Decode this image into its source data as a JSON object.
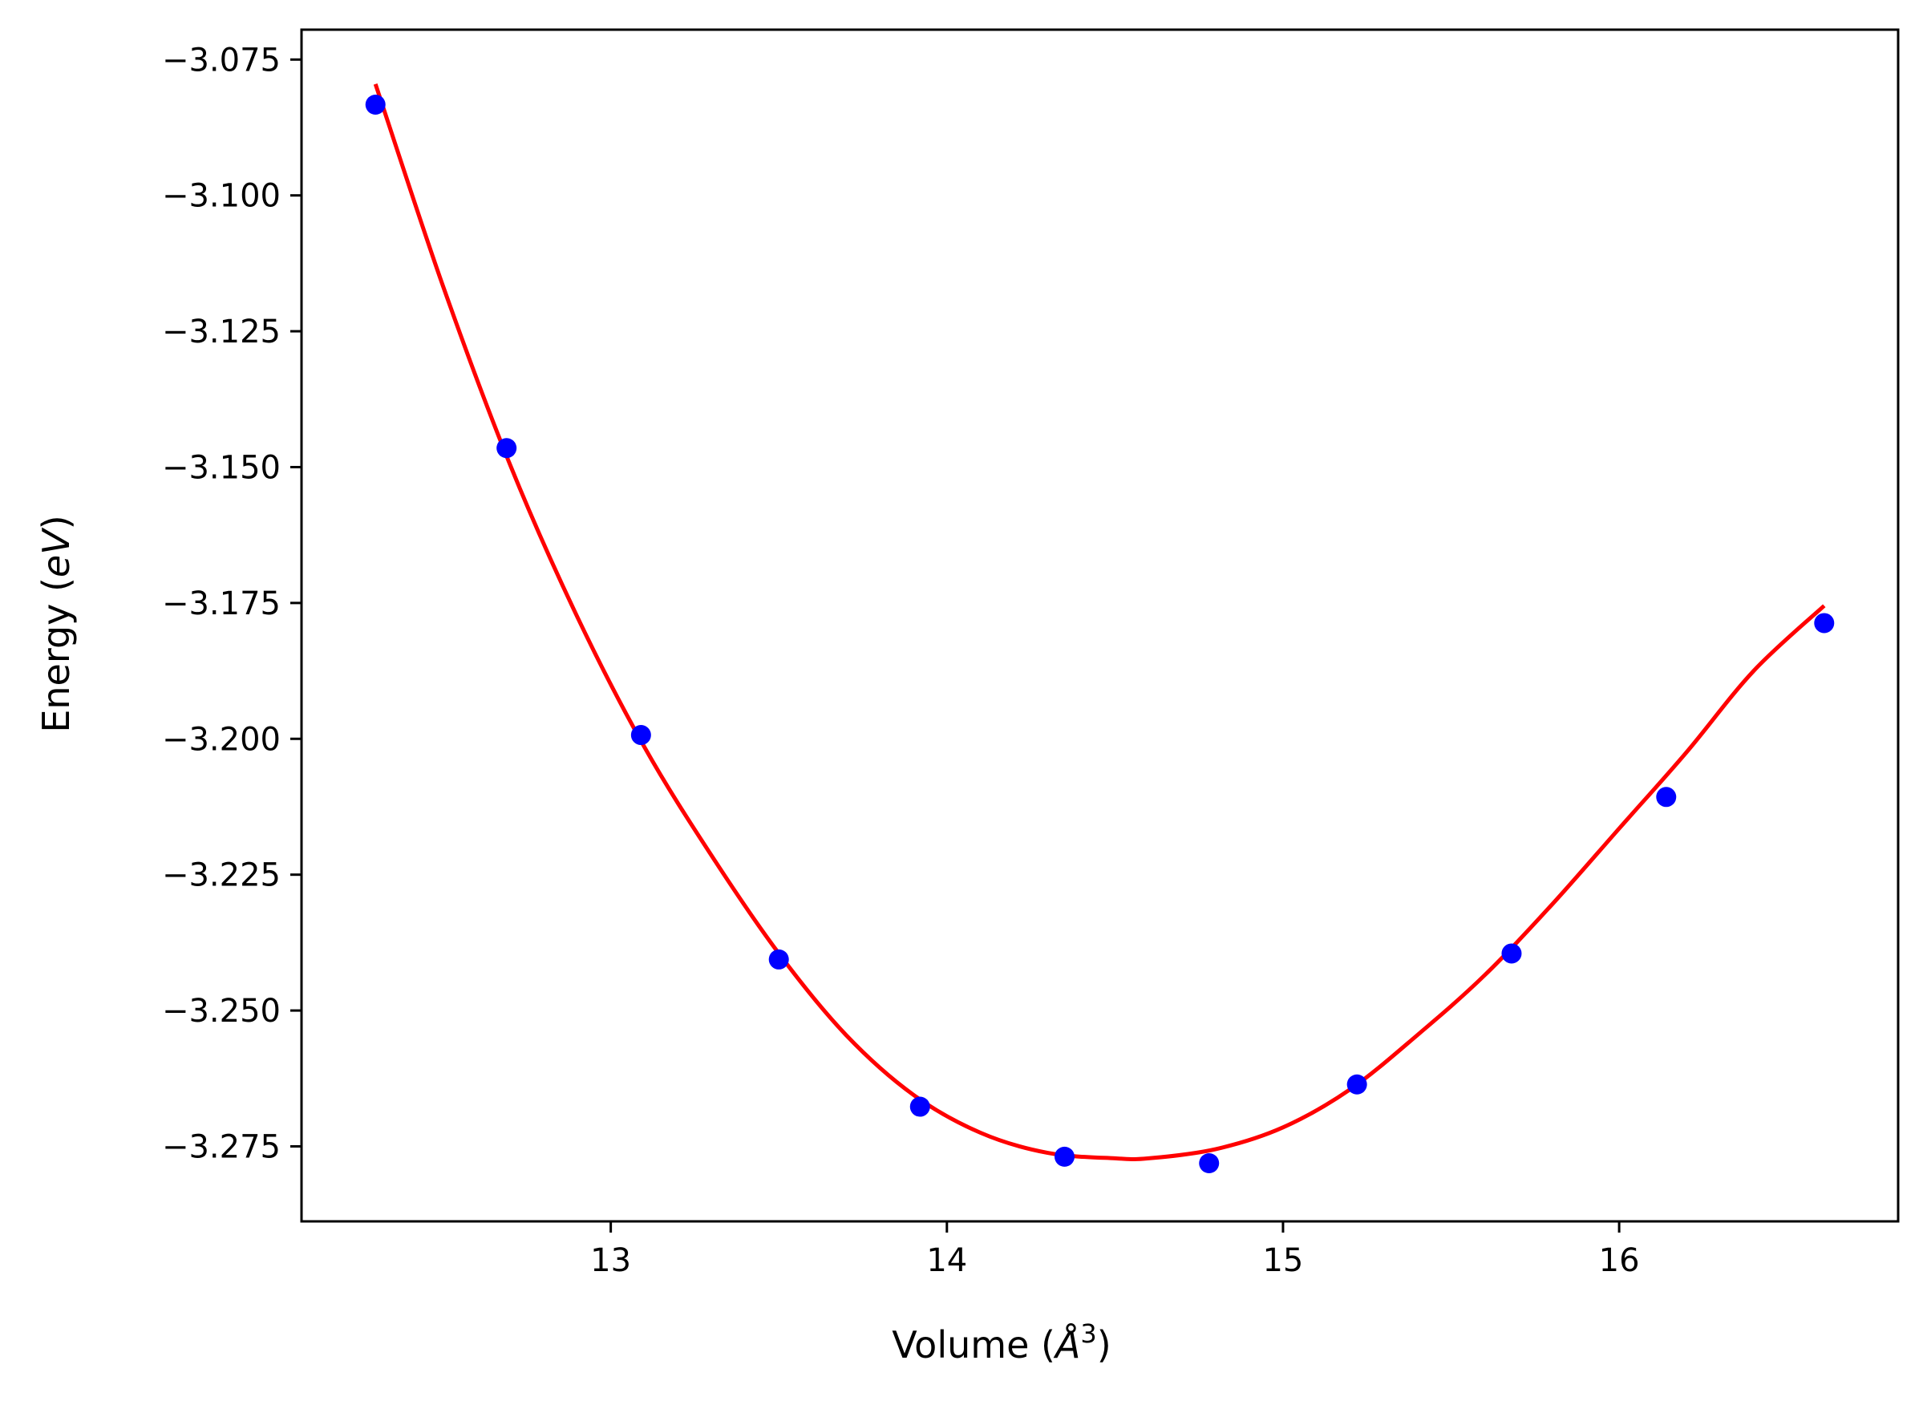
{
  "chart_data": {
    "type": "scatter",
    "title": "",
    "xlabel": "Volume (",
    "xlabel_symbol": "Å",
    "xlabel_exponent": "3",
    "xlabel_close": ")",
    "ylabel": "Energy (",
    "ylabel_unit": "eV",
    "ylabel_close": ")",
    "xlim": [
      12.08,
      16.83
    ],
    "ylim": [
      -3.2888,
      -3.0695
    ],
    "x_ticks": [
      13,
      14,
      15,
      16
    ],
    "x_tick_labels": [
      "13",
      "14",
      "15",
      "16"
    ],
    "y_ticks": [
      -3.075,
      -3.1,
      -3.125,
      -3.15,
      -3.175,
      -3.2,
      -3.225,
      -3.25,
      -3.275
    ],
    "y_tick_labels": [
      "−3.075",
      "−3.100",
      "−3.125",
      "−3.150",
      "−3.175",
      "−3.200",
      "−3.225",
      "−3.250",
      "−3.275"
    ],
    "grid": false,
    "series": [
      {
        "kind": "points",
        "color": "#0000ff",
        "x": [
          12.3,
          12.69,
          13.09,
          13.5,
          13.92,
          14.35,
          14.78,
          15.22,
          15.68,
          16.14,
          16.61
        ],
        "y": [
          -3.0833,
          -3.1465,
          -3.1993,
          -3.2406,
          -3.2677,
          -3.2769,
          -3.2781,
          -3.2636,
          -3.2395,
          -3.2107,
          -3.1787
        ]
      },
      {
        "kind": "fit-curve",
        "color": "#ff0000",
        "x": [
          12.3,
          12.5,
          12.7,
          12.9,
          13.1,
          13.3,
          13.5,
          13.7,
          13.9,
          14.1,
          14.3,
          14.5,
          14.6,
          14.8,
          15.0,
          15.2,
          15.4,
          15.6,
          15.8,
          16.0,
          16.2,
          16.4,
          16.61
        ],
        "y": [
          -3.0795,
          -3.1165,
          -3.1495,
          -3.1775,
          -3.2015,
          -3.2215,
          -3.2395,
          -3.2545,
          -3.2655,
          -3.2725,
          -3.2762,
          -3.2772,
          -3.2772,
          -3.2755,
          -3.2715,
          -3.2645,
          -3.2545,
          -3.2435,
          -3.2305,
          -3.2165,
          -3.2025,
          -3.1875,
          -3.1755
        ]
      }
    ]
  }
}
